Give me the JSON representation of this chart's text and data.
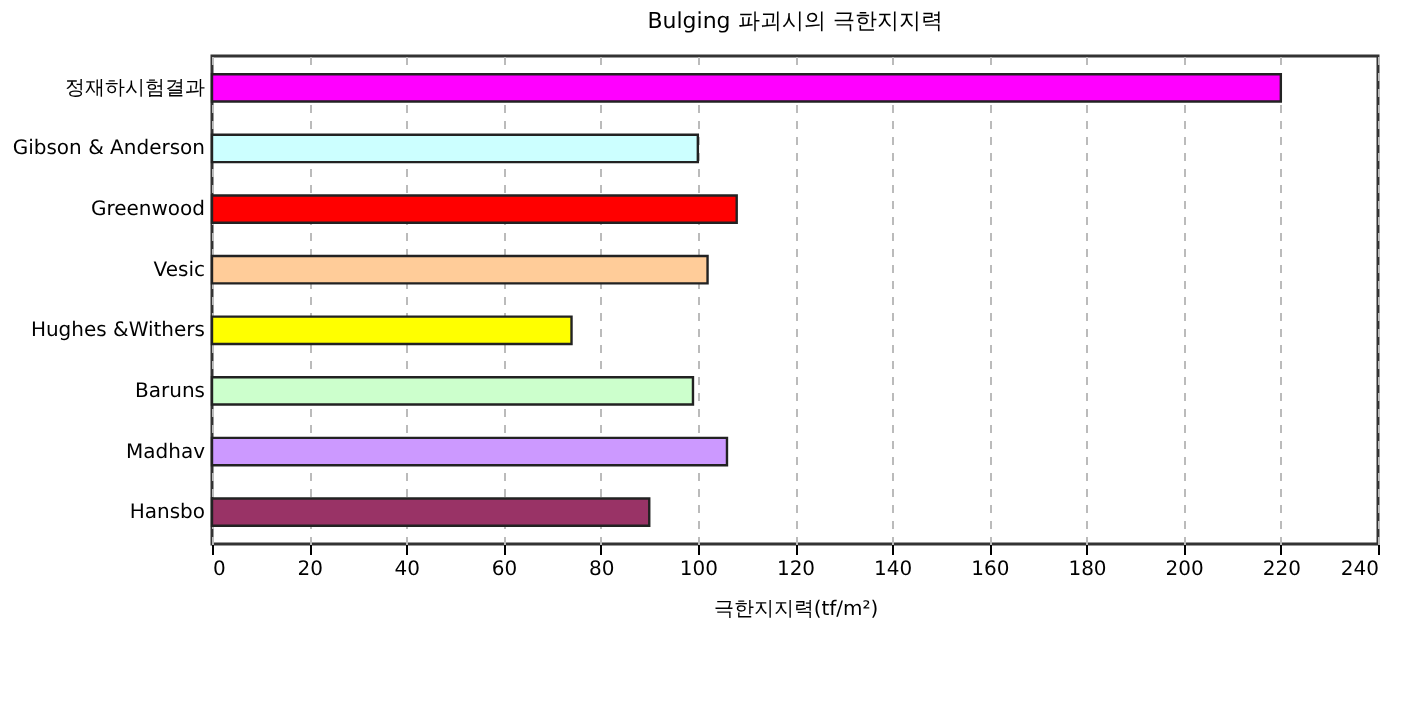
{
  "chart_data": {
    "type": "bar",
    "orientation": "horizontal",
    "title": "Bulging 파괴시의 극한지지력",
    "xlabel": "극한지지력(tf/m²)",
    "categories": [
      "정재하시험결과",
      "Gibson & Anderson",
      "Greenwood",
      "Vesic",
      "Hughes &Withers",
      "Baruns",
      "Madhav",
      "Hansbo"
    ],
    "values": [
      220,
      100,
      108,
      102,
      74,
      99,
      106,
      90
    ],
    "colors": [
      "#ff00ff",
      "#ccffff",
      "#ff0000",
      "#ffcc99",
      "#ffff00",
      "#ccffcc",
      "#cc99ff",
      "#993366"
    ],
    "xlim": [
      0,
      240
    ],
    "xticks": [
      0,
      20,
      40,
      60,
      80,
      100,
      120,
      140,
      160,
      180,
      200,
      220,
      240
    ],
    "grid": "x"
  }
}
